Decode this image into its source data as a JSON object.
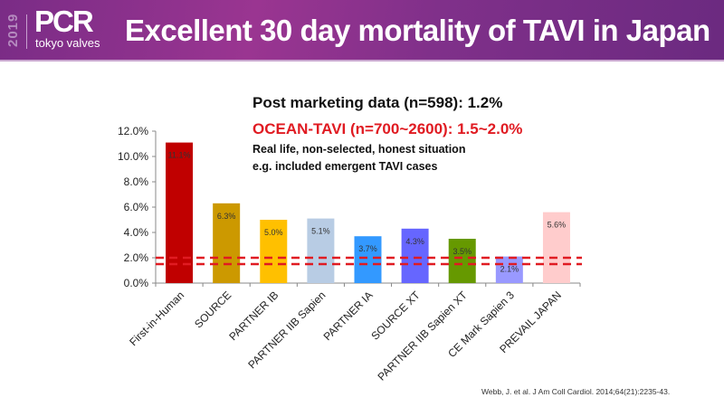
{
  "header": {
    "year": "2019",
    "logo_main": "PCR",
    "logo_sub": "tokyo valves",
    "title": "Excellent 30 day mortality of TAVI in Japan"
  },
  "annotations": {
    "post_marketing": "Post marketing data (n=598): 1.2%",
    "ocean_tavi": "OCEAN-TAVI (n=700~2600): 1.5~2.0%",
    "note_line1": "Real life, non-selected, honest situation",
    "note_line2": "e.g. included emergent TAVI cases"
  },
  "citation": "Webb, J. et al. J Am Coll Cardiol. 2014;64(21):2235-43.",
  "chart_data": {
    "type": "bar",
    "title": "",
    "xlabel": "",
    "ylabel": "",
    "ylim": [
      0,
      12
    ],
    "yticks": [
      "0.0%",
      "2.0%",
      "4.0%",
      "6.0%",
      "8.0%",
      "10.0%",
      "12.0%"
    ],
    "ytick_values": [
      0,
      2,
      4,
      6,
      8,
      10,
      12
    ],
    "categories": [
      "First-in-Human",
      "SOURCE",
      "PARTNER IB",
      "PARTNER IIB Sapien",
      "PARTNER IA",
      "SOURCE XT",
      "PARTNER IIB Sapien XT",
      "CE Mark Sapien 3",
      "PREVAIL JAPAN"
    ],
    "values": [
      11.1,
      6.3,
      5.0,
      5.1,
      3.7,
      4.3,
      3.5,
      2.1,
      5.6
    ],
    "data_labels": [
      "11.1%",
      "6.3%",
      "5.0%",
      "5.1%",
      "3.7%",
      "4.3%",
      "3.5%",
      "2.1%",
      "5.6%"
    ],
    "colors": [
      "#c00000",
      "#cc9900",
      "#ffc000",
      "#b8cce4",
      "#3399ff",
      "#6666ff",
      "#669900",
      "#9999ff",
      "#ffcccc"
    ],
    "reference_lines": [
      {
        "value": 2.0,
        "color": "#e01b22",
        "style": "dashed"
      },
      {
        "value": 1.5,
        "color": "#e01b22",
        "style": "dashed"
      }
    ],
    "grid": false,
    "legend": "none"
  }
}
